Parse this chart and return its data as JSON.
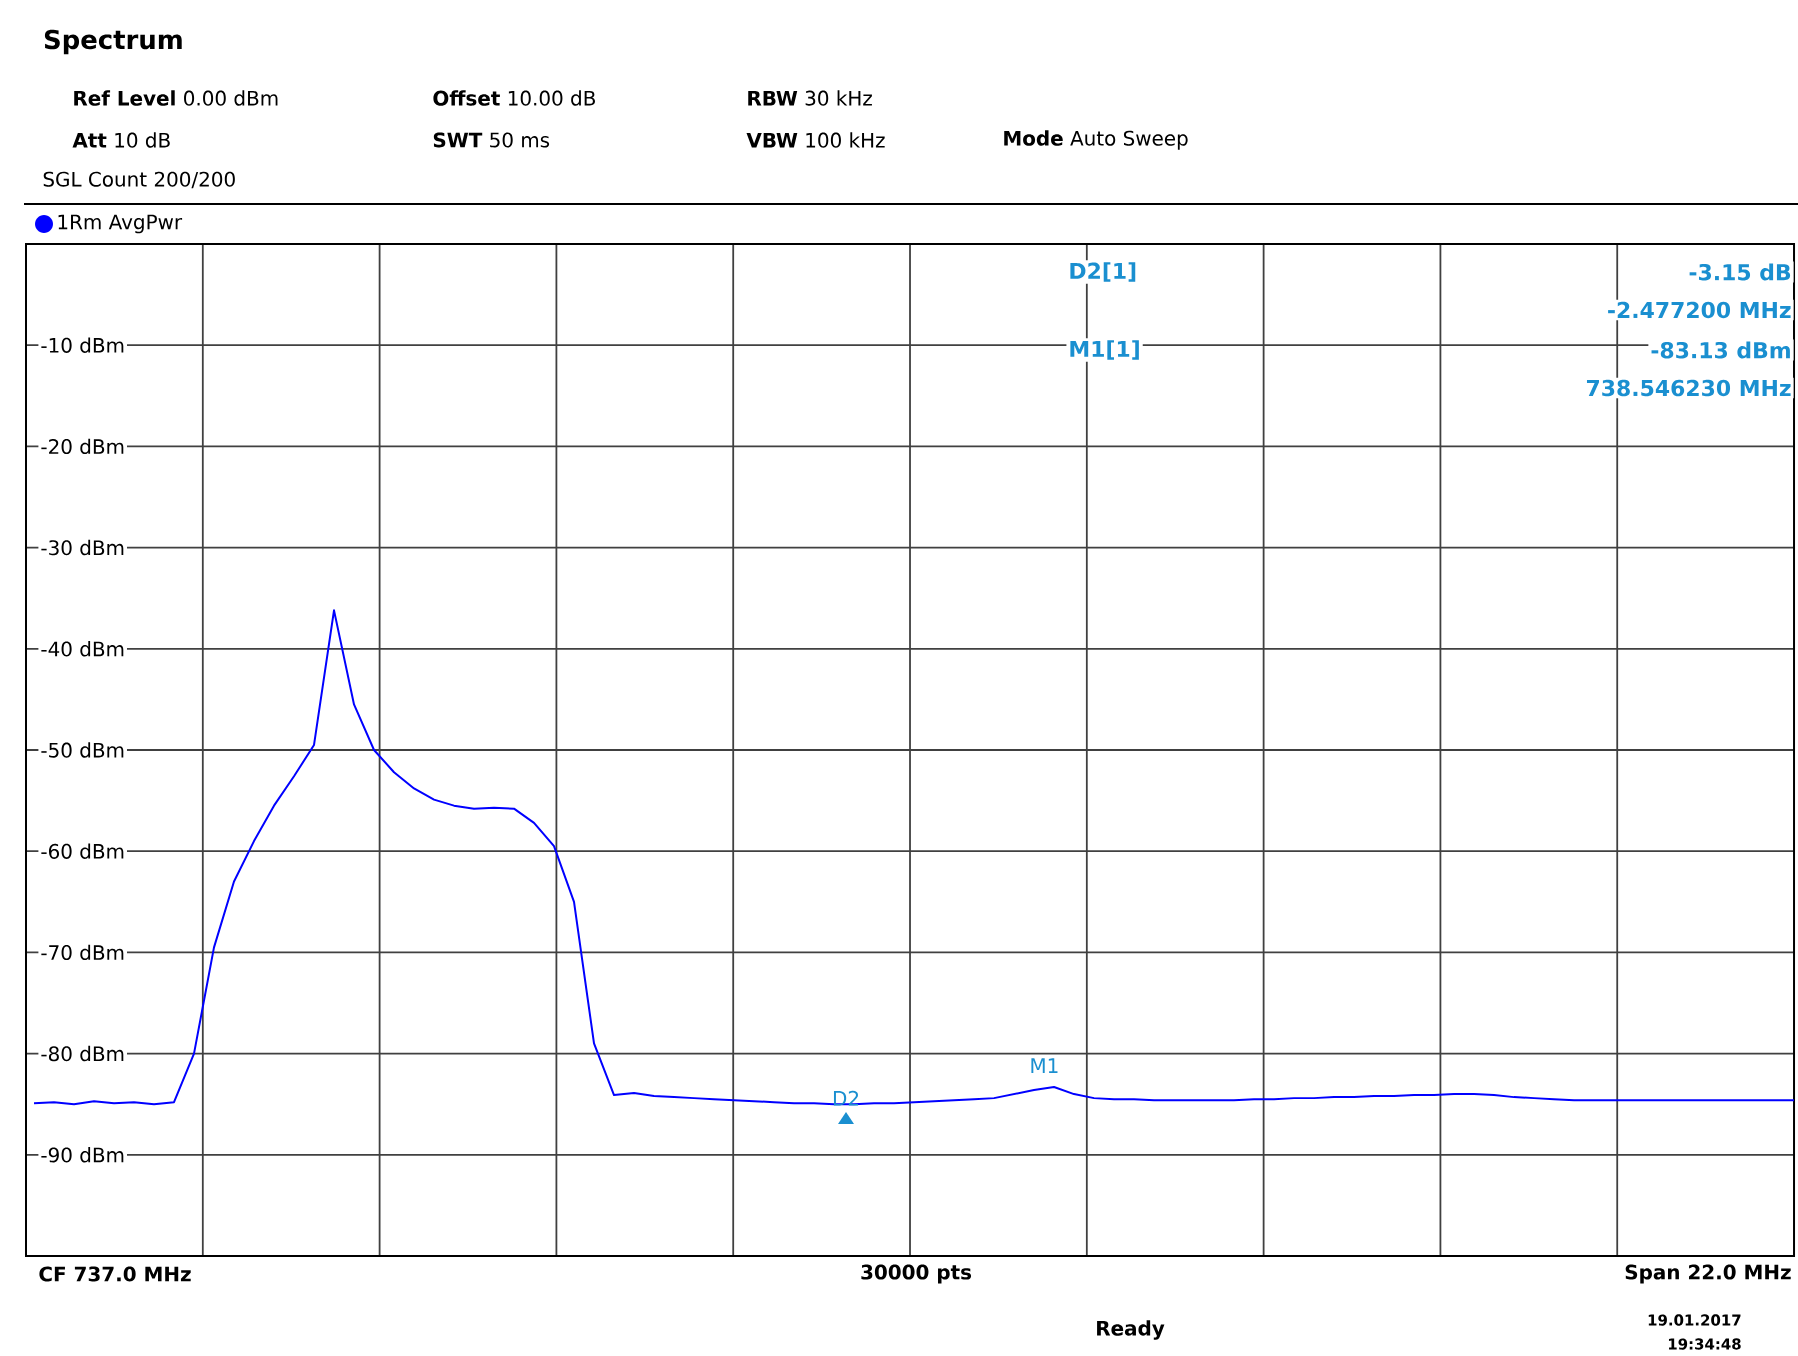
{
  "chart_data": {
    "type": "line",
    "title": "Spectrum",
    "annotations": [
      "**Ref Level** 0.00 dBm",
      "**Offset** 10.00 dB",
      "**RBW**   30 kHz",
      "**Att**        10 dB",
      "**SWT**       50 ms",
      "**VBW** 100 kHz",
      "**Mode** Auto Sweep",
      "SGL Count 200/200",
      "D2[1]",
      "-3.15 dB",
      "-2.477200 MHz",
      "M1[1]",
      "-83.13 dBm",
      "738.546230 MHz",
      "**CF 737.0 MHz**",
      "**30000 pts**",
      "**Span 22.0 MHz**",
      "**Ready**",
      "**19.01.2017**",
      "**19:34:48**",
      {
        "text": "M1",
        "y": -83.13
      },
      "D2"
    ],
    "categories": [
      null,
      null,
      null,
      null,
      null,
      null,
      null,
      null,
      null,
      null,
      null,
      null,
      null,
      null,
      null,
      null,
      null,
      null,
      null,
      null,
      null,
      null,
      null,
      null,
      null,
      null,
      null,
      null,
      null,
      null,
      null,
      null,
      null,
      null,
      null,
      null,
      null,
      null,
      null,
      null,
      null,
      null,
      null,
      null,
      null,
      null,
      null,
      null,
      null,
      null,
      null,
      null,
      null,
      null,
      null,
      null,
      null,
      null,
      null,
      null,
      null,
      null,
      null,
      null,
      null,
      null,
      null,
      null,
      null,
      null,
      null,
      null,
      null,
      null,
      null,
      null,
      null,
      null,
      null,
      null,
      null,
      null,
      null,
      null,
      null,
      null,
      null,
      null,
      null
    ],
    "ylim": [
      -100,
      0
    ],
    "yticks": [
      {
        "value": -10,
        "label": "-10 dBm"
      },
      {
        "value": -20,
        "label": "-20 dBm"
      },
      {
        "value": -30,
        "label": "-30 dBm"
      },
      {
        "value": -40,
        "label": "-40 dBm"
      },
      {
        "value": -50,
        "label": "-50 dBm"
      },
      {
        "value": -60,
        "label": "-60 dBm"
      },
      {
        "value": -70,
        "label": "-70 dBm"
      },
      {
        "value": -80,
        "label": "-80 dBm"
      },
      {
        "value": -90,
        "label": "-90 dBm"
      }
    ],
    "tick_labels": "y",
    "grid": true,
    "legend": "top left",
    "series": [
      {
        "name": "1Rm AvgPwr",
        "color": "#0000ff",
        "values": [
          -84.9,
          -84.8,
          -85.0,
          -84.7,
          -84.9,
          -84.8,
          -85.0,
          -84.8,
          -80.0,
          -69.5,
          -63.0,
          -59.0,
          -55.5,
          -52.6,
          -49.5,
          -36.2,
          -45.5,
          -50.0,
          -52.2,
          -53.8,
          -54.9,
          -55.5,
          -55.8,
          -55.7,
          -55.8,
          -57.2,
          -59.5,
          -65.0,
          -79.0,
          -84.1,
          -83.9,
          -84.2,
          -84.3,
          -84.4,
          -84.5,
          -84.6,
          -84.7,
          -84.8,
          -84.9,
          -84.9,
          -85.0,
          -85.0,
          -84.9,
          -84.9,
          -84.8,
          -84.7,
          -84.6,
          -84.5,
          -84.4,
          -84.0,
          -83.6,
          -83.3,
          -84.0,
          -84.4,
          -84.5,
          -84.5,
          -84.6,
          -84.6,
          -84.6,
          -84.6,
          -84.6,
          -84.5,
          -84.5,
          -84.4,
          -84.4,
          -84.3,
          -84.3,
          -84.2,
          -84.2,
          -84.1,
          -84.1,
          -84.0,
          -84.0,
          -84.1,
          -84.3,
          -84.4,
          -84.5,
          -84.6,
          -84.6,
          -84.6,
          -84.6,
          -84.6,
          -84.6,
          -84.6,
          -84.6,
          -84.6,
          -84.6,
          -84.6,
          -84.6
        ]
      }
    ]
  }
}
